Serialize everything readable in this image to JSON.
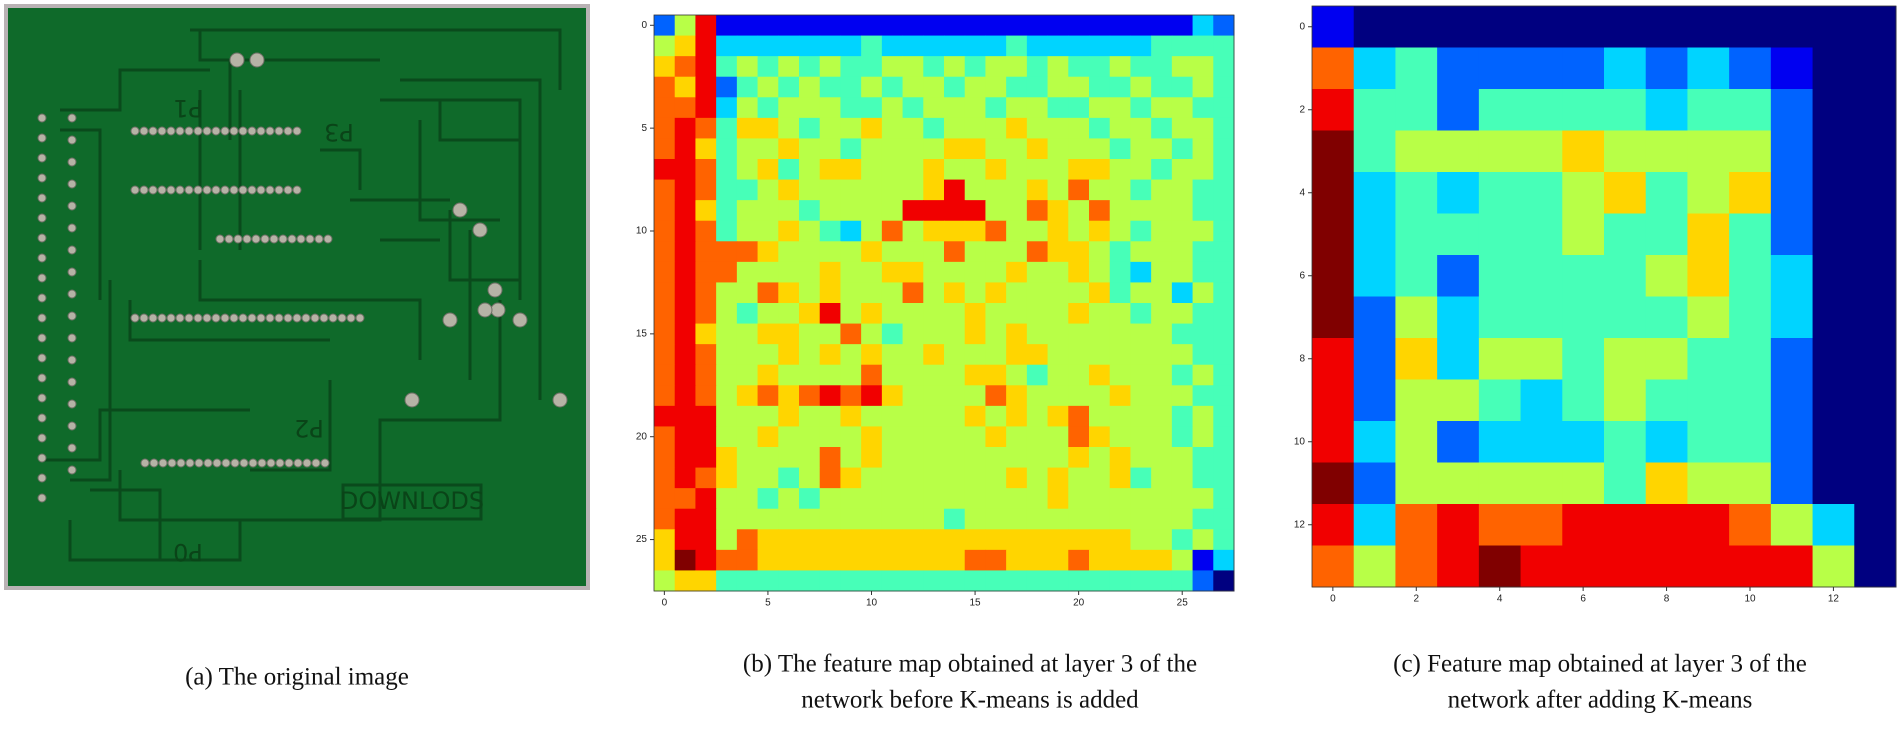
{
  "figure": {
    "panels": [
      {
        "caption_lines": [
          "(a) The original image"
        ],
        "image": {
          "labels": [
            "P1",
            "P3",
            "P2",
            "DOWNLODS",
            "P0"
          ]
        }
      },
      {
        "caption_lines": [
          "(b) The feature map obtained at layer 3 of the",
          "network before K-means is added"
        ],
        "chart_data": {
          "type": "heatmap",
          "colormap": "jet",
          "xlim": [
            -0.5,
            27.5
          ],
          "ylim": [
            -0.5,
            27.5
          ],
          "xticks": [
            0,
            5,
            10,
            15,
            20,
            25
          ],
          "yticks": [
            0,
            5,
            10,
            15,
            20,
            25
          ],
          "values": [
            [
              2,
              5,
              8,
              1,
              1,
              1,
              1,
              1,
              1,
              1,
              1,
              1,
              1,
              1,
              1,
              1,
              1,
              1,
              1,
              1,
              1,
              1,
              1,
              1,
              1,
              1,
              3,
              2
            ],
            [
              5,
              6,
              8,
              3,
              3,
              3,
              3,
              3,
              3,
              3,
              4,
              3,
              3,
              3,
              3,
              3,
              3,
              4,
              3,
              3,
              3,
              3,
              3,
              3,
              4,
              4,
              4,
              4
            ],
            [
              6,
              7,
              8,
              4,
              5,
              4,
              5,
              4,
              5,
              4,
              4,
              5,
              5,
              4,
              5,
              4,
              5,
              5,
              4,
              5,
              4,
              4,
              5,
              4,
              4,
              5,
              5,
              4
            ],
            [
              7,
              6,
              8,
              2,
              4,
              5,
              4,
              5,
              4,
              4,
              5,
              4,
              5,
              5,
              4,
              5,
              5,
              4,
              4,
              5,
              5,
              4,
              4,
              5,
              4,
              4,
              5,
              4
            ],
            [
              7,
              7,
              8,
              3,
              5,
              4,
              5,
              5,
              5,
              4,
              4,
              5,
              4,
              5,
              5,
              5,
              4,
              5,
              5,
              4,
              4,
              5,
              5,
              4,
              5,
              5,
              4,
              4
            ],
            [
              7,
              8,
              7,
              4,
              6,
              6,
              5,
              4,
              5,
              5,
              6,
              5,
              5,
              4,
              5,
              5,
              5,
              6,
              5,
              5,
              5,
              4,
              5,
              5,
              4,
              5,
              5,
              4
            ],
            [
              7,
              8,
              6,
              4,
              5,
              5,
              6,
              5,
              5,
              4,
              5,
              5,
              5,
              5,
              6,
              6,
              5,
              5,
              6,
              5,
              5,
              5,
              4,
              5,
              5,
              4,
              5,
              4
            ],
            [
              8,
              8,
              7,
              4,
              5,
              6,
              4,
              5,
              6,
              6,
              5,
              5,
              5,
              6,
              5,
              5,
              6,
              5,
              5,
              5,
              6,
              6,
              5,
              5,
              4,
              5,
              5,
              4
            ],
            [
              7,
              8,
              7,
              4,
              4,
              5,
              6,
              5,
              5,
              5,
              5,
              5,
              5,
              6,
              8,
              5,
              5,
              5,
              6,
              5,
              7,
              5,
              5,
              4,
              5,
              5,
              4,
              4
            ],
            [
              7,
              8,
              6,
              4,
              5,
              5,
              5,
              4,
              5,
              5,
              5,
              5,
              8,
              8,
              8,
              8,
              5,
              5,
              7,
              6,
              5,
              7,
              5,
              5,
              5,
              5,
              4,
              4
            ],
            [
              7,
              8,
              7,
              4,
              5,
              5,
              6,
              5,
              4,
              3,
              5,
              7,
              5,
              6,
              6,
              6,
              7,
              5,
              5,
              6,
              5,
              6,
              5,
              4,
              5,
              5,
              5,
              4
            ],
            [
              7,
              8,
              7,
              7,
              7,
              6,
              5,
              5,
              5,
              5,
              6,
              5,
              5,
              5,
              7,
              5,
              5,
              5,
              7,
              6,
              6,
              5,
              4,
              5,
              5,
              5,
              4,
              4
            ],
            [
              7,
              8,
              7,
              7,
              5,
              5,
              5,
              5,
              6,
              5,
              5,
              6,
              6,
              5,
              5,
              5,
              5,
              6,
              5,
              5,
              6,
              5,
              4,
              3,
              5,
              5,
              4,
              4
            ],
            [
              7,
              8,
              7,
              5,
              5,
              7,
              6,
              5,
              6,
              5,
              5,
              5,
              7,
              5,
              6,
              5,
              6,
              5,
              5,
              5,
              5,
              6,
              4,
              5,
              5,
              3,
              5,
              4
            ],
            [
              7,
              8,
              7,
              5,
              4,
              5,
              5,
              6,
              8,
              5,
              6,
              5,
              5,
              5,
              5,
              6,
              5,
              5,
              5,
              5,
              6,
              5,
              5,
              4,
              5,
              5,
              4,
              4
            ],
            [
              7,
              8,
              6,
              5,
              5,
              6,
              6,
              5,
              5,
              7,
              5,
              4,
              5,
              5,
              5,
              6,
              5,
              6,
              5,
              5,
              5,
              5,
              5,
              5,
              5,
              4,
              4,
              4
            ],
            [
              7,
              8,
              7,
              5,
              5,
              5,
              6,
              5,
              6,
              5,
              6,
              5,
              5,
              6,
              5,
              5,
              5,
              6,
              6,
              5,
              5,
              5,
              5,
              5,
              5,
              5,
              4,
              4
            ],
            [
              7,
              8,
              7,
              5,
              5,
              6,
              5,
              5,
              5,
              5,
              7,
              5,
              5,
              5,
              5,
              6,
              6,
              5,
              4,
              5,
              5,
              6,
              5,
              5,
              5,
              4,
              5,
              4
            ],
            [
              7,
              8,
              7,
              5,
              6,
              7,
              6,
              7,
              8,
              7,
              8,
              6,
              5,
              5,
              5,
              5,
              7,
              6,
              5,
              5,
              5,
              5,
              6,
              5,
              5,
              5,
              4,
              4
            ],
            [
              8,
              8,
              8,
              5,
              5,
              5,
              6,
              5,
              5,
              6,
              5,
              5,
              5,
              5,
              5,
              6,
              5,
              6,
              5,
              6,
              7,
              5,
              5,
              5,
              5,
              4,
              5,
              4
            ],
            [
              7,
              8,
              8,
              5,
              5,
              6,
              5,
              5,
              5,
              5,
              6,
              5,
              5,
              5,
              5,
              5,
              6,
              5,
              5,
              5,
              7,
              6,
              5,
              5,
              5,
              4,
              5,
              4
            ],
            [
              7,
              8,
              8,
              6,
              5,
              5,
              5,
              5,
              7,
              5,
              6,
              5,
              5,
              5,
              5,
              5,
              5,
              5,
              5,
              5,
              6,
              5,
              6,
              5,
              5,
              5,
              4,
              4
            ],
            [
              7,
              8,
              7,
              6,
              5,
              5,
              4,
              5,
              7,
              6,
              5,
              5,
              5,
              5,
              5,
              5,
              5,
              6,
              5,
              6,
              5,
              5,
              6,
              4,
              5,
              5,
              4,
              4
            ],
            [
              7,
              7,
              8,
              5,
              5,
              4,
              5,
              4,
              5,
              5,
              5,
              5,
              5,
              5,
              5,
              5,
              5,
              5,
              5,
              6,
              5,
              5,
              5,
              5,
              5,
              5,
              5,
              4
            ],
            [
              7,
              8,
              8,
              5,
              5,
              5,
              5,
              5,
              5,
              5,
              5,
              5,
              5,
              5,
              4,
              5,
              5,
              5,
              5,
              5,
              5,
              5,
              5,
              5,
              5,
              5,
              4,
              4
            ],
            [
              6,
              8,
              8,
              5,
              7,
              6,
              6,
              6,
              6,
              6,
              6,
              6,
              6,
              6,
              6,
              6,
              6,
              6,
              6,
              6,
              6,
              6,
              6,
              5,
              5,
              4,
              5,
              4
            ],
            [
              6,
              9,
              8,
              7,
              7,
              6,
              6,
              6,
              6,
              6,
              6,
              6,
              6,
              6,
              6,
              7,
              7,
              6,
              6,
              6,
              7,
              6,
              6,
              6,
              6,
              5,
              1,
              3
            ],
            [
              5,
              6,
              6,
              4,
              4,
              4,
              4,
              4,
              4,
              4,
              4,
              4,
              4,
              4,
              4,
              4,
              4,
              4,
              4,
              4,
              4,
              4,
              4,
              4,
              4,
              4,
              2,
              0
            ]
          ]
        }
      },
      {
        "caption_lines": [
          "(c) Feature map obtained at layer 3 of the",
          "network after adding K-means"
        ],
        "chart_data": {
          "type": "heatmap",
          "colormap": "jet",
          "xlim": [
            -0.5,
            13.5
          ],
          "ylim": [
            -0.5,
            13.5
          ],
          "xticks": [
            0,
            2,
            4,
            6,
            8,
            10,
            12
          ],
          "yticks": [
            0,
            2,
            4,
            6,
            8,
            10,
            12
          ],
          "values": [
            [
              1,
              0,
              0,
              0,
              0,
              0,
              0,
              0,
              0,
              0,
              0,
              0,
              0,
              0
            ],
            [
              7,
              3,
              4,
              2,
              2,
              2,
              2,
              3,
              2,
              3,
              2,
              1,
              0,
              0
            ],
            [
              8,
              4,
              4,
              2,
              4,
              4,
              4,
              4,
              3,
              4,
              4,
              2,
              0,
              0
            ],
            [
              9,
              4,
              5,
              5,
              5,
              5,
              6,
              5,
              5,
              5,
              5,
              2,
              0,
              0
            ],
            [
              9,
              3,
              4,
              3,
              4,
              4,
              5,
              6,
              4,
              5,
              6,
              2,
              0,
              0
            ],
            [
              9,
              3,
              4,
              4,
              4,
              4,
              5,
              4,
              4,
              6,
              4,
              2,
              0,
              0
            ],
            [
              9,
              3,
              4,
              2,
              4,
              4,
              4,
              4,
              5,
              6,
              4,
              3,
              0,
              0
            ],
            [
              9,
              2,
              5,
              3,
              4,
              4,
              4,
              4,
              4,
              5,
              4,
              3,
              0,
              0
            ],
            [
              8,
              2,
              6,
              3,
              5,
              5,
              4,
              5,
              5,
              4,
              4,
              2,
              0,
              0
            ],
            [
              8,
              2,
              5,
              5,
              4,
              3,
              4,
              5,
              4,
              4,
              4,
              2,
              0,
              0
            ],
            [
              8,
              3,
              5,
              2,
              3,
              3,
              3,
              4,
              3,
              4,
              4,
              2,
              0,
              0
            ],
            [
              9,
              2,
              5,
              5,
              5,
              5,
              5,
              4,
              6,
              5,
              5,
              2,
              0,
              0
            ],
            [
              8,
              3,
              7,
              8,
              7,
              7,
              8,
              8,
              8,
              8,
              7,
              5,
              3,
              0
            ],
            [
              7,
              5,
              7,
              8,
              9,
              8,
              8,
              8,
              8,
              8,
              8,
              8,
              5,
              0
            ]
          ]
        }
      }
    ]
  }
}
